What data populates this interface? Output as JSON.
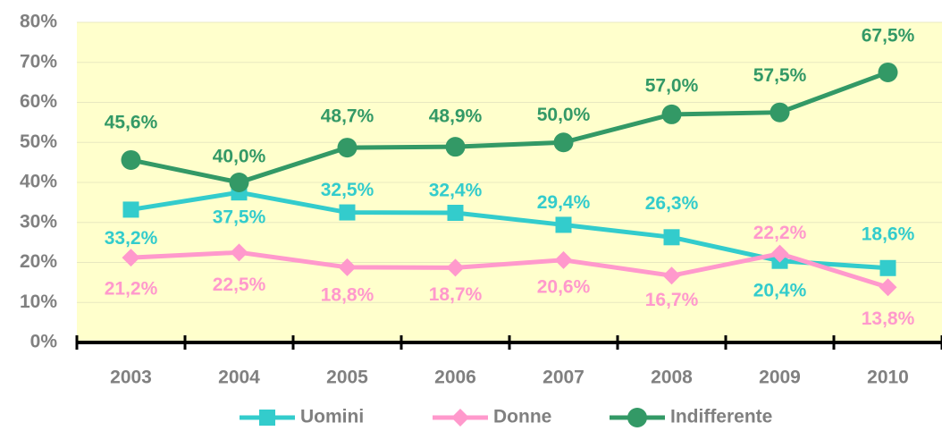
{
  "chart_data": {
    "type": "line",
    "categories": [
      "2003",
      "2004",
      "2005",
      "2006",
      "2007",
      "2008",
      "2009",
      "2010"
    ],
    "series": [
      {
        "name": "Uomini",
        "color": "#33cccc",
        "marker": "square",
        "values": [
          33.2,
          37.5,
          32.5,
          32.4,
          29.4,
          26.3,
          20.4,
          18.6
        ],
        "value_labels": [
          "33,2%",
          "37,5%",
          "32,5%",
          "32,4%",
          "29,4%",
          "26,3%",
          "20,4%",
          "18,6%"
        ]
      },
      {
        "name": "Donne",
        "color": "#ff99cc",
        "marker": "diamond",
        "values": [
          21.2,
          22.5,
          18.8,
          18.7,
          20.6,
          16.7,
          22.2,
          13.8
        ],
        "value_labels": [
          "21,2%",
          "22,5%",
          "18,8%",
          "18,7%",
          "20,6%",
          "16,7%",
          "22,2%",
          "13,8%"
        ]
      },
      {
        "name": "Indifferente",
        "color": "#339966",
        "marker": "circle",
        "values": [
          45.6,
          40.0,
          48.7,
          48.9,
          50.0,
          57.0,
          57.5,
          67.5
        ],
        "value_labels": [
          "45,6%",
          "40,0%",
          "48,7%",
          "48,9%",
          "50,0%",
          "57,0%",
          "57,5%",
          "67,5%"
        ]
      }
    ],
    "ylim": [
      0,
      80
    ],
    "yticks": [
      {
        "value": 0,
        "label": "0%"
      },
      {
        "value": 10,
        "label": "10%"
      },
      {
        "value": 20,
        "label": "20%"
      },
      {
        "value": 30,
        "label": "30%"
      },
      {
        "value": 40,
        "label": "40%"
      },
      {
        "value": 50,
        "label": "50%"
      },
      {
        "value": 60,
        "label": "60%"
      },
      {
        "value": 70,
        "label": "70%"
      },
      {
        "value": 80,
        "label": "80%"
      }
    ],
    "grid": true,
    "legend": "bottom"
  }
}
